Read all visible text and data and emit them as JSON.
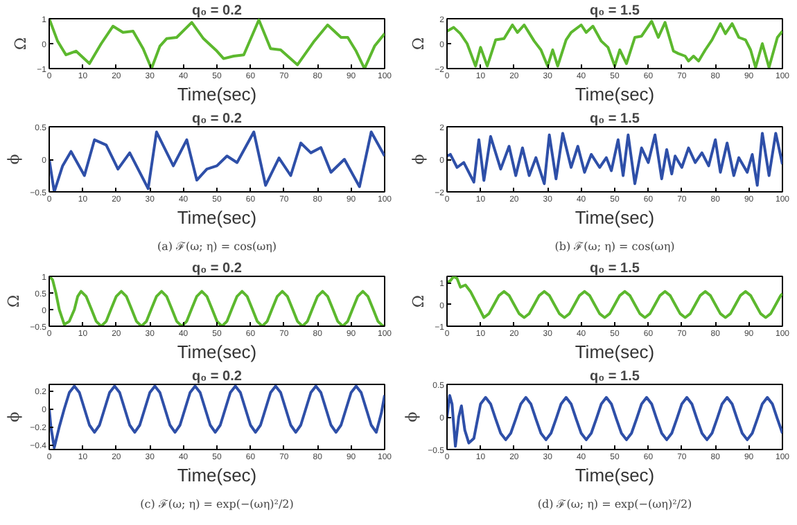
{
  "chart_data": [
    {
      "type": "line",
      "title": "q₀ = 0.2",
      "xlabel": "Time(sec)",
      "ylabel": "Ω",
      "color": "#5cb82e",
      "xlim": [
        0,
        100
      ],
      "ylim": [
        -1,
        1
      ],
      "xticks": [
        0,
        10,
        20,
        30,
        40,
        50,
        60,
        70,
        80,
        90,
        100
      ],
      "yticks": [
        -1,
        0,
        1
      ],
      "x": [
        0,
        2.5,
        5,
        8,
        12,
        15.5,
        19,
        22,
        25,
        28,
        30.5,
        33,
        35,
        38,
        42.5,
        46,
        50,
        52,
        55,
        58,
        62.5,
        66,
        69,
        74,
        79,
        83,
        87,
        89,
        91.5,
        94,
        97,
        100
      ],
      "values": [
        1,
        0.1,
        -0.45,
        -0.3,
        -0.8,
        0,
        0.7,
        0.45,
        0.5,
        -0.2,
        -1,
        -0.1,
        0.2,
        0.25,
        0.85,
        0.2,
        -0.3,
        -0.6,
        -0.5,
        -0.45,
        0.95,
        -0.2,
        -0.25,
        -0.85,
        0.1,
        0.75,
        0.25,
        0.25,
        -0.3,
        -1,
        -0.1,
        0.4
      ]
    },
    {
      "type": "line",
      "title": "q₀ = 1.5",
      "xlabel": "Time(sec)",
      "ylabel": "Ω",
      "color": "#5cb82e",
      "xlim": [
        0,
        100
      ],
      "ylim": [
        -2,
        2
      ],
      "xticks": [
        0,
        10,
        20,
        30,
        40,
        50,
        60,
        70,
        80,
        90,
        100
      ],
      "yticks": [
        -2,
        0,
        2
      ],
      "x": [
        0,
        2,
        4,
        6,
        8.5,
        10,
        12,
        14.5,
        17,
        19.5,
        21,
        23,
        26,
        28,
        30,
        31.5,
        33,
        35.5,
        37,
        40,
        41.5,
        43.5,
        46,
        48,
        50,
        51.5,
        53.5,
        56,
        58,
        61,
        63,
        65,
        67.5,
        69,
        71,
        72,
        73.5,
        75,
        77,
        79,
        81.5,
        83,
        85,
        87,
        89,
        90.5,
        92,
        94,
        96,
        98.5,
        100
      ],
      "values": [
        1,
        1.3,
        0.8,
        0,
        -1.8,
        -0.3,
        -1.8,
        0.3,
        0.4,
        1.5,
        0.9,
        1.5,
        0.2,
        -0.5,
        -1.8,
        -0.5,
        -1.8,
        0.3,
        0.9,
        1.5,
        0.9,
        1.4,
        0.2,
        -0.3,
        -1.8,
        -0.5,
        -1.6,
        0.5,
        0.6,
        1.8,
        0.5,
        1.7,
        -0.6,
        -0.8,
        -1.0,
        -1.4,
        -1.0,
        -1.4,
        -0.5,
        0.3,
        1.6,
        0.8,
        1.6,
        0.5,
        0.3,
        -0.5,
        -1.9,
        0,
        -1.9,
        0.5,
        1.0
      ]
    },
    {
      "type": "line",
      "title": "q₀ = 0.2",
      "xlabel": "Time(sec)",
      "ylabel": "ϕ",
      "color": "#2e4fa8",
      "xlim": [
        0,
        100
      ],
      "ylim": [
        -0.5,
        0.5
      ],
      "xticks": [
        0,
        10,
        20,
        30,
        40,
        50,
        60,
        70,
        80,
        90,
        100
      ],
      "yticks": [
        -0.5,
        0,
        0.5
      ],
      "annotations": [
        "(a) ℱ(ω; η) = cos(ωη)"
      ],
      "x": [
        0,
        1.5,
        4,
        6.5,
        10.5,
        13.5,
        17,
        20.5,
        24,
        29.5,
        32,
        37,
        41,
        44,
        47,
        50,
        53,
        56,
        61,
        64.5,
        68.5,
        72,
        75,
        78,
        81,
        84,
        88,
        92.5,
        96,
        100
      ],
      "values": [
        0,
        -0.5,
        -0.1,
        0.12,
        -0.25,
        0.3,
        0.22,
        -0.15,
        0.1,
        -0.45,
        0.42,
        -0.1,
        0.3,
        -0.32,
        -0.15,
        -0.1,
        0.05,
        -0.05,
        0.42,
        -0.4,
        0.02,
        -0.25,
        0.25,
        0.1,
        0.18,
        -0.2,
        0,
        -0.42,
        0.42,
        0.05
      ]
    },
    {
      "type": "line",
      "title": "q₀ = 1.5",
      "xlabel": "Time(sec)",
      "ylabel": "ϕ",
      "color": "#2e4fa8",
      "xlim": [
        0,
        100
      ],
      "ylim": [
        -2,
        2
      ],
      "xticks": [
        0,
        10,
        20,
        30,
        40,
        50,
        60,
        70,
        80,
        90,
        100
      ],
      "yticks": [
        -2,
        0,
        2
      ],
      "annotations": [
        "(b) ℱ(ω; η) = cos(ωη)"
      ],
      "x": [
        0,
        1,
        3,
        5,
        8,
        9.5,
        11,
        13,
        16,
        18.5,
        20.5,
        22.5,
        24.5,
        26.5,
        29,
        30.5,
        32.5,
        34.5,
        37,
        39,
        41,
        43,
        45.5,
        47.5,
        49,
        51,
        52.5,
        54,
        56,
        58,
        60,
        62,
        64,
        65.5,
        67,
        68,
        70,
        72,
        74,
        76,
        78,
        80,
        81.5,
        83.5,
        85.5,
        87,
        89.5,
        91,
        92.5,
        94,
        96,
        98,
        100
      ],
      "values": [
        0.2,
        0.3,
        -0.5,
        -0.2,
        -1.4,
        1.2,
        -1.3,
        1.4,
        -0.6,
        0.8,
        -1.0,
        0.7,
        -1.0,
        0.1,
        -1.5,
        1.5,
        -1.2,
        1.6,
        -0.5,
        0.8,
        -0.8,
        0.3,
        -0.5,
        0.1,
        -0.7,
        1.2,
        -1.0,
        1.5,
        -1.5,
        0.7,
        -0.2,
        1.5,
        -1.2,
        0.6,
        -0.9,
        0.2,
        -0.5,
        0.7,
        -0.2,
        0.4,
        -0.4,
        1.2,
        -0.8,
        1.0,
        -1.0,
        0.1,
        -0.8,
        0.3,
        -1.6,
        1.6,
        -1.0,
        1.6,
        -0.3
      ]
    },
    {
      "type": "line",
      "title": "q₀ = 0.2",
      "xlabel": "Time(sec)",
      "ylabel": "Ω",
      "color": "#5cb82e",
      "xlim": [
        0,
        100
      ],
      "ylim": [
        -0.5,
        1
      ],
      "xticks": [
        0,
        10,
        20,
        30,
        40,
        50,
        60,
        70,
        80,
        90,
        100
      ],
      "yticks": [
        -0.5,
        0,
        0.5,
        1
      ],
      "x": [
        0,
        1,
        2,
        3,
        4.5,
        6,
        7.5,
        8.5,
        9.5,
        11,
        12.5,
        14,
        15.5,
        17,
        18.5,
        20,
        21.5,
        23,
        24.5,
        26,
        27.5,
        29,
        30.5,
        32,
        33.5,
        35,
        36.5,
        38,
        39.5,
        41,
        42.5,
        44,
        45.5,
        47,
        48.5,
        50,
        51.5,
        53,
        54.5,
        56,
        57.5,
        59,
        60.5,
        62,
        63.5,
        65,
        66.5,
        68,
        69.5,
        71,
        72.5,
        74,
        75.5,
        77,
        78.5,
        80,
        81.5,
        83,
        84.5,
        86,
        87.5,
        89,
        90.5,
        92,
        93.5,
        95,
        96.5,
        98,
        99.5,
        100
      ],
      "values": [
        1,
        0.9,
        0.5,
        0,
        -0.45,
        -0.35,
        0,
        0.4,
        0.55,
        0.4,
        0.03,
        -0.35,
        -0.5,
        -0.35,
        0.03,
        0.4,
        0.55,
        0.4,
        0.03,
        -0.35,
        -0.5,
        -0.35,
        0.03,
        0.4,
        0.55,
        0.4,
        0.03,
        -0.35,
        -0.5,
        -0.35,
        0.03,
        0.4,
        0.55,
        0.4,
        0.03,
        -0.35,
        -0.5,
        -0.35,
        0.03,
        0.4,
        0.55,
        0.4,
        0.03,
        -0.35,
        -0.5,
        -0.35,
        0.03,
        0.4,
        0.55,
        0.4,
        0.03,
        -0.35,
        -0.5,
        -0.35,
        0.03,
        0.4,
        0.55,
        0.4,
        0.03,
        -0.35,
        -0.5,
        -0.35,
        0.03,
        0.4,
        0.55,
        0.4,
        0.03,
        -0.35,
        -0.5,
        -0.49
      ]
    },
    {
      "type": "line",
      "title": "q₀ = 1.5",
      "xlabel": "Time(sec)",
      "ylabel": "Ω",
      "color": "#5cb82e",
      "xlim": [
        0,
        100
      ],
      "ylim": [
        -1,
        1.3
      ],
      "xticks": [
        0,
        10,
        20,
        30,
        40,
        50,
        60,
        70,
        80,
        90,
        100
      ],
      "yticks": [
        -1,
        0,
        1
      ],
      "x": [
        0,
        1,
        2,
        3,
        4,
        5.5,
        7,
        9,
        11,
        12.5,
        14,
        15.5,
        17,
        18.5,
        20,
        21.5,
        23,
        24.5,
        26,
        27.5,
        29,
        30.5,
        32,
        33.5,
        35,
        36.5,
        38,
        39.5,
        41,
        42.5,
        44,
        45.5,
        47,
        48.5,
        50,
        51.5,
        53,
        54.5,
        56,
        57.5,
        59,
        60.5,
        62,
        63.5,
        65,
        66.5,
        68,
        69.5,
        71,
        72.5,
        74,
        75.5,
        77,
        78.5,
        80,
        81.5,
        83,
        84.5,
        86,
        87.5,
        89,
        90.5,
        92,
        93.5,
        95,
        96.5,
        98,
        99.5,
        100
      ],
      "values": [
        1,
        1.1,
        1.3,
        1.2,
        0.8,
        0.9,
        0.6,
        0,
        -0.6,
        -0.42,
        0,
        0.42,
        0.6,
        0.42,
        0,
        -0.42,
        -0.6,
        -0.42,
        0,
        0.42,
        0.6,
        0.42,
        0,
        -0.42,
        -0.6,
        -0.42,
        0,
        0.42,
        0.6,
        0.42,
        0,
        -0.42,
        -0.6,
        -0.42,
        0,
        0.42,
        0.6,
        0.42,
        0,
        -0.42,
        -0.6,
        -0.42,
        0,
        0.42,
        0.6,
        0.42,
        0,
        -0.42,
        -0.6,
        -0.42,
        0,
        0.42,
        0.6,
        0.42,
        0,
        -0.42,
        -0.6,
        -0.42,
        0,
        0.42,
        0.6,
        0.42,
        0,
        -0.42,
        -0.6,
        -0.42,
        0,
        0.42,
        0.5
      ]
    },
    {
      "type": "line",
      "title": "q₀ = 0.2",
      "xlabel": "Time(sec)",
      "ylabel": "ϕ",
      "color": "#2e4fa8",
      "xlim": [
        0,
        100
      ],
      "ylim": [
        -0.45,
        0.27
      ],
      "xticks": [
        0,
        10,
        20,
        30,
        40,
        50,
        60,
        70,
        80,
        90,
        100
      ],
      "yticks": [
        -0.4,
        -0.2,
        0,
        0.2
      ],
      "annotations": [
        "(c) ℱ(ω; η) = exp(−(ωη)²/2)"
      ],
      "x": [
        0,
        0.5,
        1.5,
        3,
        4.5,
        6,
        7.5,
        9,
        10.5,
        12,
        13.5,
        15,
        16.5,
        18,
        19.5,
        21,
        22.5,
        24,
        25.5,
        27,
        28.5,
        30,
        31.5,
        33,
        34.5,
        36,
        37.5,
        39,
        40.5,
        42,
        43.5,
        45,
        46.5,
        48,
        49.5,
        51,
        52.5,
        54,
        55.5,
        57,
        58.5,
        60,
        61.5,
        63,
        64.5,
        66,
        67.5,
        69,
        70.5,
        72,
        73.5,
        75,
        76.5,
        78,
        79.5,
        81,
        82.5,
        84,
        85.5,
        87,
        88.5,
        90,
        91.5,
        93,
        94.5,
        96,
        97.5,
        99,
        100
      ],
      "values": [
        0,
        -0.2,
        -0.43,
        -0.2,
        0,
        0.18,
        0.25,
        0.18,
        0,
        -0.18,
        -0.26,
        -0.18,
        0,
        0.18,
        0.25,
        0.18,
        0,
        -0.18,
        -0.26,
        -0.18,
        0,
        0.18,
        0.25,
        0.18,
        0,
        -0.18,
        -0.26,
        -0.18,
        0,
        0.18,
        0.25,
        0.18,
        0,
        -0.18,
        -0.26,
        -0.18,
        0,
        0.18,
        0.25,
        0.18,
        0,
        -0.18,
        -0.26,
        -0.18,
        0,
        0.18,
        0.25,
        0.18,
        0,
        -0.18,
        -0.26,
        -0.18,
        0,
        0.18,
        0.25,
        0.18,
        0,
        -0.18,
        -0.26,
        -0.18,
        0,
        0.18,
        0.25,
        0.18,
        0,
        -0.18,
        -0.26,
        -0.05,
        0.15
      ]
    },
    {
      "type": "line",
      "title": "q₀ = 1.5",
      "xlabel": "Time(sec)",
      "ylabel": "ϕ",
      "color": "#2e4fa8",
      "xlim": [
        0,
        100
      ],
      "ylim": [
        -0.5,
        0.5
      ],
      "xticks": [
        0,
        10,
        20,
        30,
        40,
        50,
        60,
        70,
        80,
        90,
        100
      ],
      "yticks": [
        -0.5,
        0,
        0.5
      ],
      "annotations": [
        "(d) ℱ(ω; η) = exp(−(ωη)²/2)"
      ],
      "x": [
        0,
        0.8,
        1.5,
        2.5,
        3.5,
        4.3,
        5.3,
        6.5,
        8,
        10,
        11.5,
        13,
        14.5,
        16,
        17.5,
        19,
        20.5,
        22,
        23.5,
        25,
        26.5,
        28,
        29.5,
        31,
        32.5,
        34,
        35.5,
        37,
        38.5,
        40,
        41.5,
        43,
        44.5,
        46,
        47.5,
        49,
        50.5,
        52,
        53.5,
        55,
        56.5,
        58,
        59.5,
        61,
        62.5,
        64,
        65.5,
        67,
        68.5,
        70,
        71.5,
        73,
        74.5,
        76,
        77.5,
        79,
        80.5,
        82,
        83.5,
        85,
        86.5,
        88,
        89.5,
        91,
        92.5,
        94,
        95.5,
        97,
        98.5,
        100
      ],
      "values": [
        0,
        0.33,
        0.2,
        -0.45,
        0,
        0.17,
        -0.2,
        -0.4,
        -0.33,
        0.2,
        0.3,
        0.2,
        -0.03,
        -0.25,
        -0.35,
        -0.25,
        -0.03,
        0.2,
        0.3,
        0.2,
        -0.03,
        -0.25,
        -0.35,
        -0.25,
        -0.03,
        0.2,
        0.3,
        0.2,
        -0.03,
        -0.25,
        -0.35,
        -0.25,
        -0.03,
        0.2,
        0.3,
        0.2,
        -0.03,
        -0.25,
        -0.35,
        -0.25,
        -0.03,
        0.2,
        0.3,
        0.2,
        -0.03,
        -0.25,
        -0.35,
        -0.25,
        -0.03,
        0.2,
        0.3,
        0.2,
        -0.03,
        -0.25,
        -0.35,
        -0.25,
        -0.03,
        0.2,
        0.3,
        0.2,
        -0.03,
        -0.25,
        -0.35,
        -0.25,
        -0.03,
        0.2,
        0.3,
        0.2,
        -0.03,
        -0.25
      ]
    }
  ]
}
